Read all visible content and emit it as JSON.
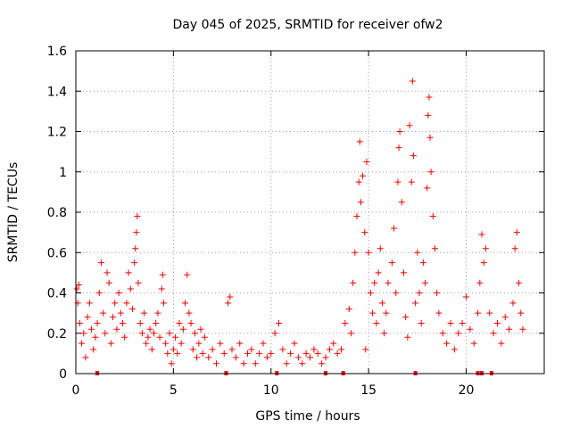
{
  "chart_data": {
    "type": "scatter",
    "title": "Day 045 of 2025, SRMTID for receiver ofw2",
    "xlabel": "GPS time / hours",
    "ylabel": "SRMTID / TECUs",
    "xlim": [
      0,
      24
    ],
    "ylim": [
      0,
      1.6
    ],
    "x_ticks": [
      0,
      5,
      10,
      15,
      20
    ],
    "x_tick_labels": [
      "0",
      "5",
      "10",
      "15",
      "20"
    ],
    "y_ticks": [
      0,
      0.2,
      0.4,
      0.6,
      0.8,
      1.0,
      1.2,
      1.4,
      1.6
    ],
    "y_tick_labels": [
      "0",
      "0.2",
      "0.4",
      "0.6",
      "0.8",
      "1",
      "1.2",
      "1.4",
      "1.6"
    ],
    "grid": true,
    "marker": "+",
    "series": [
      {
        "name": "SRMTID",
        "color": "#ff0000",
        "points": [
          [
            0.05,
            0.42
          ],
          [
            0.1,
            0.35
          ],
          [
            0.15,
            0.44
          ],
          [
            0.2,
            0.25
          ],
          [
            0.3,
            0.15
          ],
          [
            0.4,
            0.2
          ],
          [
            0.5,
            0.08
          ],
          [
            0.6,
            0.28
          ],
          [
            0.7,
            0.35
          ],
          [
            0.8,
            0.22
          ],
          [
            0.9,
            0.12
          ],
          [
            1.0,
            0.18
          ],
          [
            1.1,
            0.25
          ],
          [
            1.2,
            0.4
          ],
          [
            1.3,
            0.55
          ],
          [
            1.4,
            0.3
          ],
          [
            1.5,
            0.2
          ],
          [
            1.6,
            0.5
          ],
          [
            1.7,
            0.45
          ],
          [
            1.8,
            0.15
          ],
          [
            1.9,
            0.28
          ],
          [
            2.0,
            0.35
          ],
          [
            2.1,
            0.22
          ],
          [
            2.2,
            0.4
          ],
          [
            2.3,
            0.3
          ],
          [
            2.4,
            0.25
          ],
          [
            2.5,
            0.18
          ],
          [
            2.6,
            0.35
          ],
          [
            2.7,
            0.5
          ],
          [
            2.8,
            0.42
          ],
          [
            2.9,
            0.32
          ],
          [
            3.0,
            0.55
          ],
          [
            3.05,
            0.62
          ],
          [
            3.1,
            0.7
          ],
          [
            3.15,
            0.78
          ],
          [
            3.2,
            0.45
          ],
          [
            3.3,
            0.25
          ],
          [
            3.4,
            0.2
          ],
          [
            3.5,
            0.3
          ],
          [
            3.6,
            0.15
          ],
          [
            3.7,
            0.18
          ],
          [
            3.8,
            0.22
          ],
          [
            3.9,
            0.12
          ],
          [
            4.0,
            0.2
          ],
          [
            4.1,
            0.25
          ],
          [
            4.2,
            0.3
          ],
          [
            4.3,
            0.18
          ],
          [
            4.4,
            0.42
          ],
          [
            4.45,
            0.49
          ],
          [
            4.5,
            0.35
          ],
          [
            4.6,
            0.15
          ],
          [
            4.7,
            0.1
          ],
          [
            4.8,
            0.2
          ],
          [
            4.9,
            0.05
          ],
          [
            5.0,
            0.12
          ],
          [
            5.1,
            0.18
          ],
          [
            5.2,
            0.1
          ],
          [
            5.3,
            0.25
          ],
          [
            5.4,
            0.15
          ],
          [
            5.5,
            0.22
          ],
          [
            5.6,
            0.35
          ],
          [
            5.7,
            0.49
          ],
          [
            5.8,
            0.3
          ],
          [
            5.9,
            0.25
          ],
          [
            6.0,
            0.12
          ],
          [
            6.1,
            0.2
          ],
          [
            6.2,
            0.08
          ],
          [
            6.3,
            0.15
          ],
          [
            6.4,
            0.22
          ],
          [
            6.5,
            0.1
          ],
          [
            6.6,
            0.18
          ],
          [
            6.8,
            0.08
          ],
          [
            7.0,
            0.12
          ],
          [
            7.2,
            0.05
          ],
          [
            7.4,
            0.15
          ],
          [
            7.6,
            0.1
          ],
          [
            7.8,
            0.35
          ],
          [
            7.9,
            0.38
          ],
          [
            8.0,
            0.12
          ],
          [
            8.2,
            0.08
          ],
          [
            8.4,
            0.15
          ],
          [
            8.6,
            0.05
          ],
          [
            8.8,
            0.1
          ],
          [
            9.0,
            0.12
          ],
          [
            9.2,
            0.05
          ],
          [
            9.4,
            0.1
          ],
          [
            9.6,
            0.15
          ],
          [
            9.8,
            0.08
          ],
          [
            10.0,
            0.1
          ],
          [
            10.2,
            0.2
          ],
          [
            10.4,
            0.25
          ],
          [
            10.6,
            0.12
          ],
          [
            10.8,
            0.05
          ],
          [
            11.0,
            0.1
          ],
          [
            11.2,
            0.15
          ],
          [
            11.4,
            0.08
          ],
          [
            11.6,
            0.05
          ],
          [
            11.8,
            0.1
          ],
          [
            12.0,
            0.08
          ],
          [
            12.2,
            0.12
          ],
          [
            12.4,
            0.1
          ],
          [
            12.6,
            0.05
          ],
          [
            12.8,
            0.08
          ],
          [
            13.0,
            0.12
          ],
          [
            13.2,
            0.15
          ],
          [
            13.4,
            0.1
          ],
          [
            13.6,
            0.12
          ],
          [
            13.8,
            0.25
          ],
          [
            14.0,
            0.32
          ],
          [
            14.1,
            0.2
          ],
          [
            14.2,
            0.45
          ],
          [
            14.3,
            0.6
          ],
          [
            14.4,
            0.78
          ],
          [
            14.5,
            0.95
          ],
          [
            14.55,
            1.15
          ],
          [
            14.6,
            0.85
          ],
          [
            14.7,
            0.98
          ],
          [
            14.8,
            0.7
          ],
          [
            14.85,
            0.12
          ],
          [
            14.9,
            1.05
          ],
          [
            15.0,
            0.6
          ],
          [
            15.1,
            0.4
          ],
          [
            15.2,
            0.3
          ],
          [
            15.3,
            0.45
          ],
          [
            15.4,
            0.25
          ],
          [
            15.5,
            0.5
          ],
          [
            15.6,
            0.62
          ],
          [
            15.7,
            0.35
          ],
          [
            15.8,
            0.2
          ],
          [
            15.9,
            0.3
          ],
          [
            16.0,
            0.45
          ],
          [
            16.2,
            0.55
          ],
          [
            16.3,
            0.72
          ],
          [
            16.4,
            0.4
          ],
          [
            16.5,
            0.95
          ],
          [
            16.55,
            1.12
          ],
          [
            16.6,
            1.2
          ],
          [
            16.7,
            0.85
          ],
          [
            16.8,
            0.5
          ],
          [
            16.9,
            0.28
          ],
          [
            17.0,
            0.18
          ],
          [
            17.1,
            1.23
          ],
          [
            17.2,
            0.95
          ],
          [
            17.25,
            1.45
          ],
          [
            17.3,
            1.08
          ],
          [
            17.4,
            0.35
          ],
          [
            17.5,
            0.6
          ],
          [
            17.6,
            0.4
          ],
          [
            17.7,
            0.25
          ],
          [
            17.8,
            0.55
          ],
          [
            17.9,
            0.45
          ],
          [
            18.0,
            0.92
          ],
          [
            18.05,
            1.28
          ],
          [
            18.1,
            1.37
          ],
          [
            18.15,
            1.17
          ],
          [
            18.2,
            1.0
          ],
          [
            18.3,
            0.78
          ],
          [
            18.4,
            0.62
          ],
          [
            18.5,
            0.4
          ],
          [
            18.6,
            0.3
          ],
          [
            18.8,
            0.2
          ],
          [
            19.0,
            0.15
          ],
          [
            19.2,
            0.25
          ],
          [
            19.4,
            0.12
          ],
          [
            19.6,
            0.2
          ],
          [
            19.8,
            0.25
          ],
          [
            20.0,
            0.38
          ],
          [
            20.2,
            0.22
          ],
          [
            20.4,
            0.15
          ],
          [
            20.6,
            0.3
          ],
          [
            20.7,
            0.45
          ],
          [
            20.8,
            0.69
          ],
          [
            20.9,
            0.55
          ],
          [
            21.0,
            0.62
          ],
          [
            21.2,
            0.3
          ],
          [
            21.4,
            0.2
          ],
          [
            21.6,
            0.25
          ],
          [
            21.8,
            0.15
          ],
          [
            22.0,
            0.28
          ],
          [
            22.2,
            0.22
          ],
          [
            22.4,
            0.35
          ],
          [
            22.5,
            0.62
          ],
          [
            22.6,
            0.7
          ],
          [
            22.7,
            0.45
          ],
          [
            22.8,
            0.3
          ],
          [
            22.9,
            0.22
          ]
        ]
      }
    ],
    "baseline_markers_x": [
      1.1,
      7.7,
      10.3,
      12.8,
      13.7,
      17.4,
      20.6,
      20.8,
      21.3
    ]
  }
}
